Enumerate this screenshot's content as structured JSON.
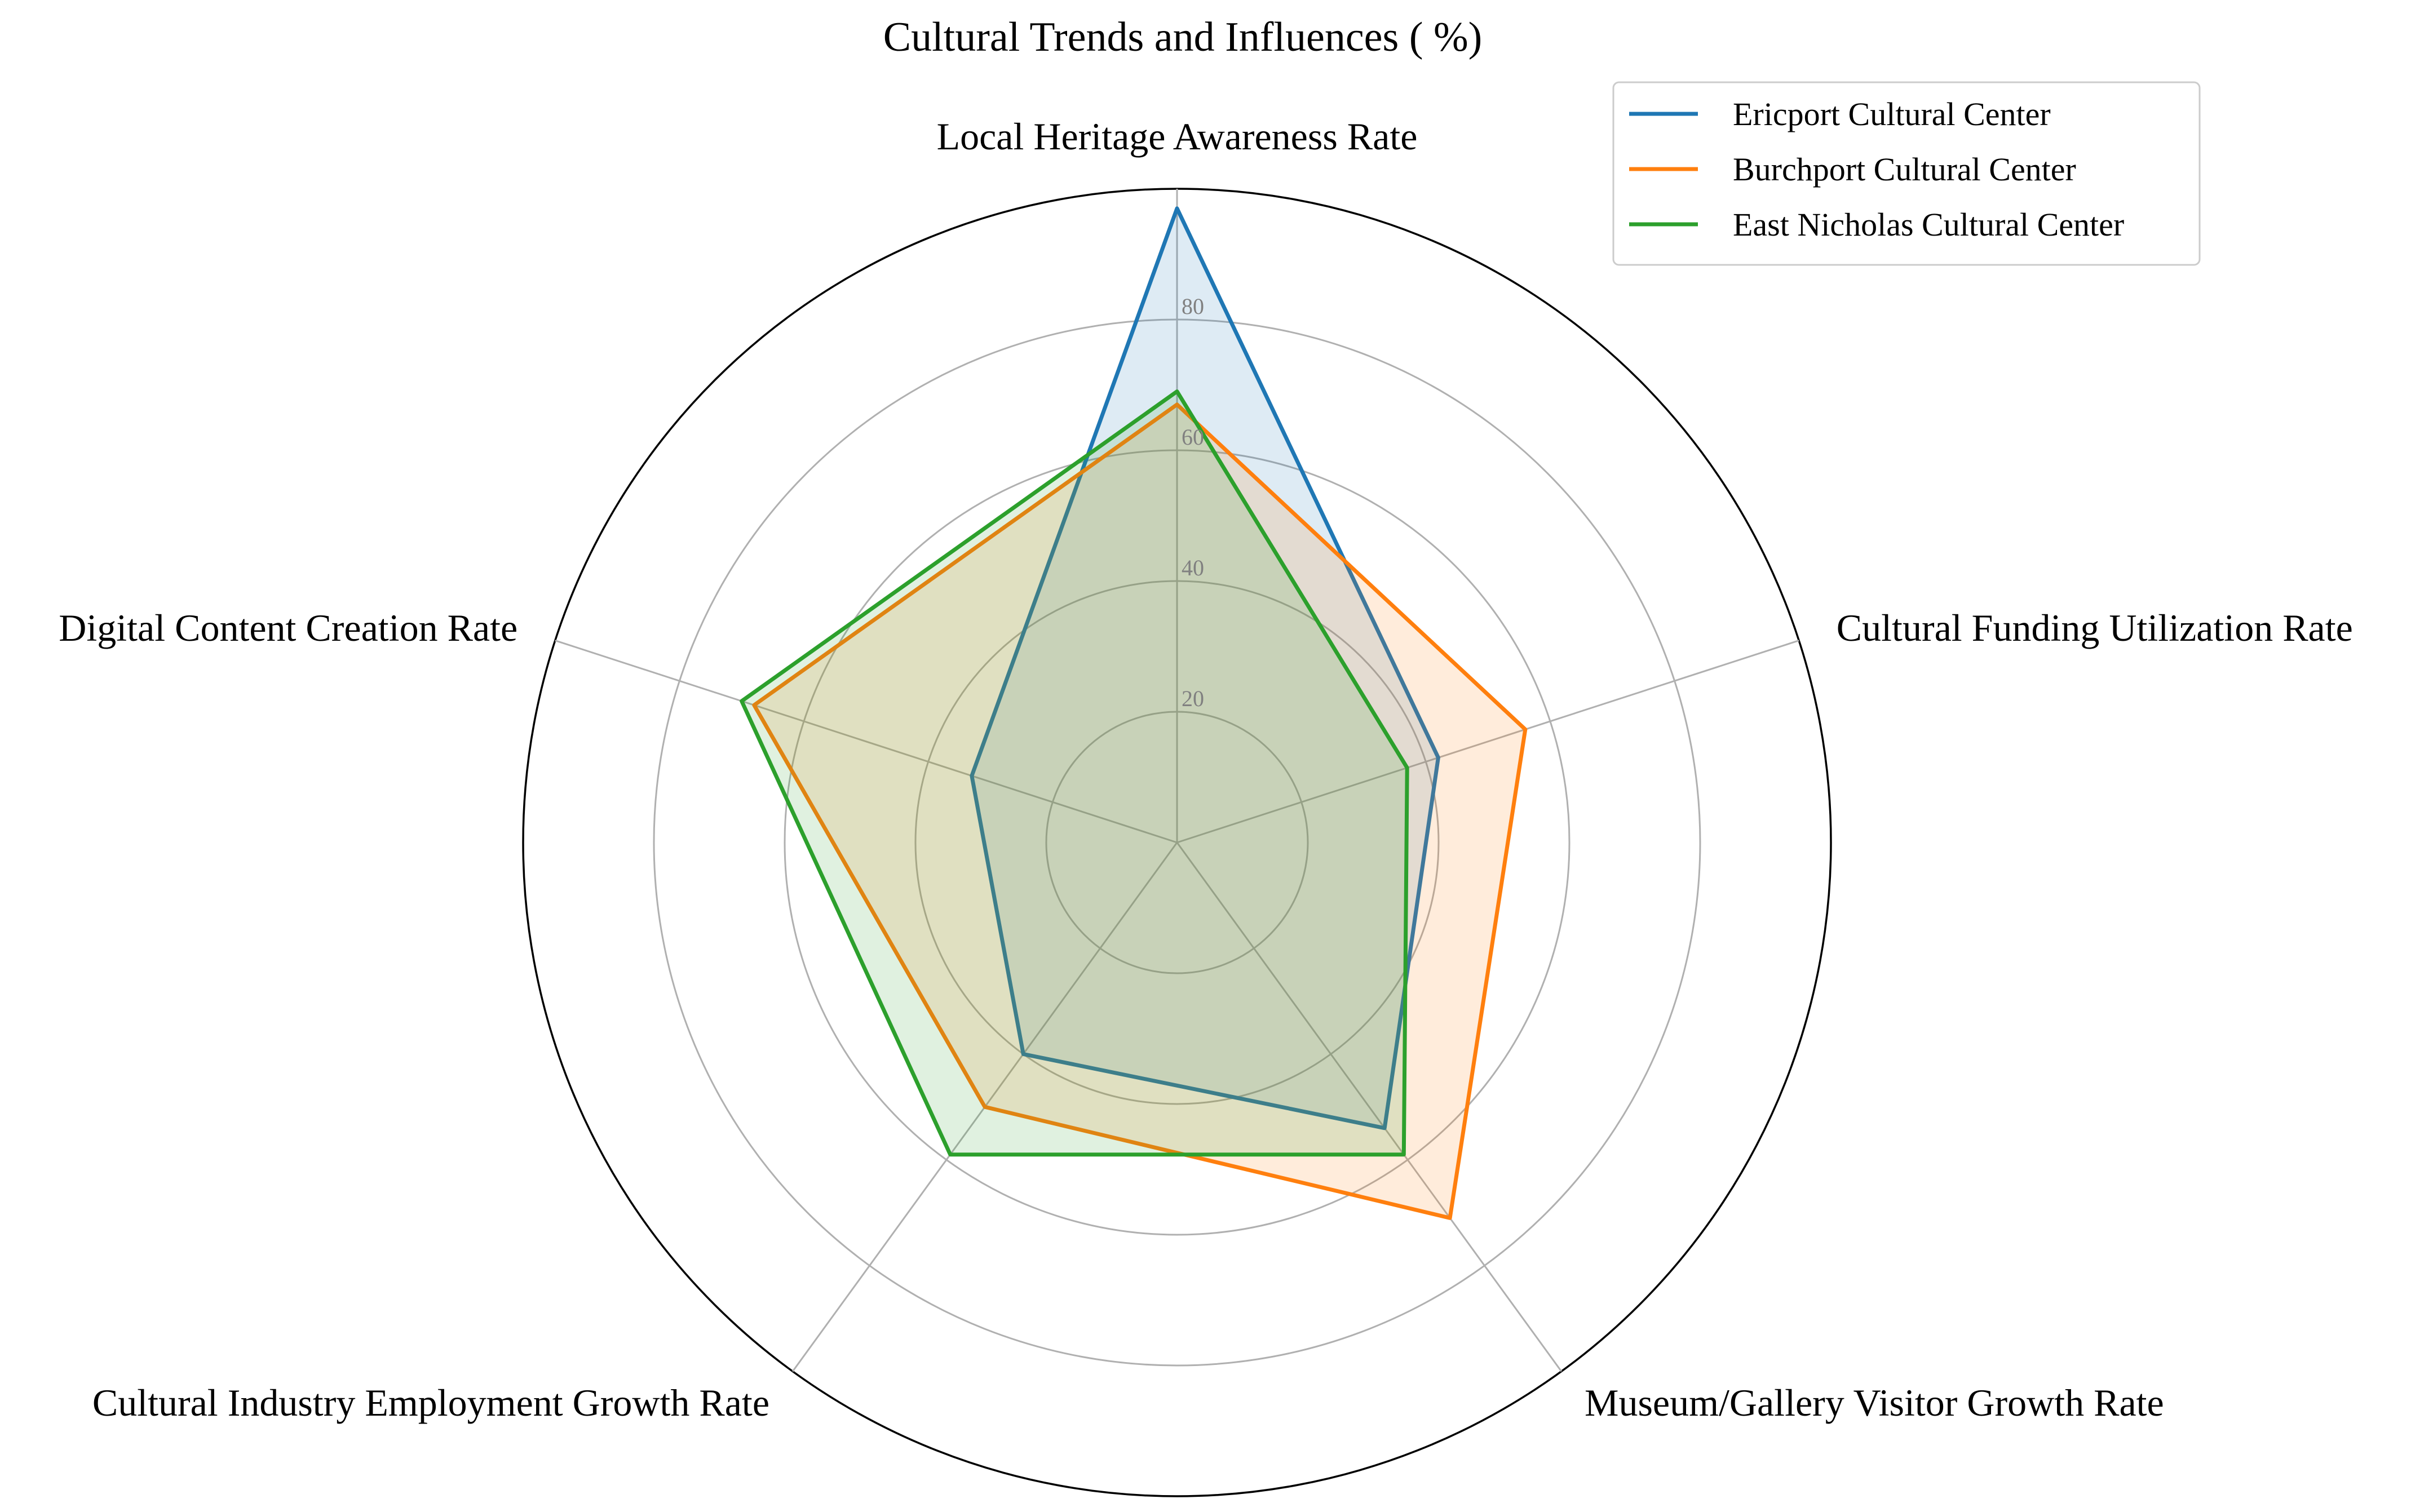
{
  "chart_data": {
    "type": "radar",
    "title": "Cultural Trends and Influences ( %)",
    "categories": [
      "Local Heritage Awareness Rate",
      "Cultural Funding Utilization Rate",
      "Museum/Gallery Visitor Growth Rate",
      "Cultural Industry Employment Growth Rate",
      "Digital Content Creation Rate"
    ],
    "series": [
      {
        "name": "Ericport Cultural Center",
        "values": [
          97,
          42,
          54,
          40,
          33
        ],
        "color": "#1f77b4"
      },
      {
        "name": "Burchport Cultural Center",
        "values": [
          67,
          56,
          71,
          50,
          68
        ],
        "color": "#ff7f0e"
      },
      {
        "name": "East Nicholas Cultural Center",
        "values": [
          69,
          37,
          59,
          59,
          70
        ],
        "color": "#2ca02c"
      }
    ],
    "rlim": [
      0,
      100
    ],
    "rticks": [
      20,
      40,
      60,
      80
    ],
    "rtick_labels": [
      "20",
      "40",
      "60",
      "80"
    ],
    "grid": true,
    "legend": "top-right"
  }
}
